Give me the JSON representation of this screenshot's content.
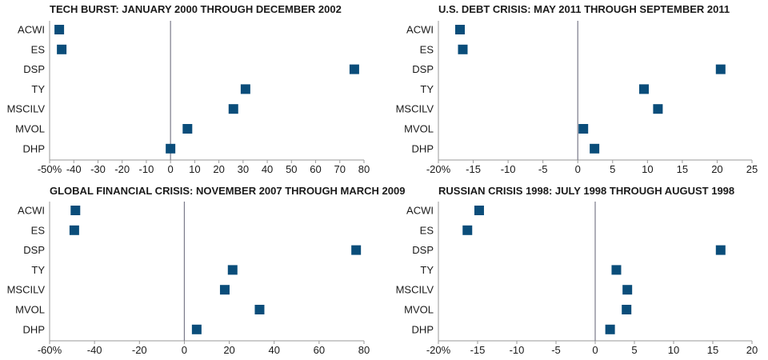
{
  "marker_color": "#0a4d7a",
  "axis_color": "#9a9a9a",
  "zero_line_color": "#7a7a8a",
  "chart_data": [
    {
      "type": "scatter",
      "title": "TECH BURST: JANUARY 2000 THROUGH DECEMBER 2002",
      "categories": [
        "ACWI",
        "ES",
        "DSP",
        "TY",
        "MSCILV",
        "MVOL",
        "DHP"
      ],
      "values": [
        -46,
        -45,
        76,
        31,
        26,
        7,
        0
      ],
      "xlim": [
        -50,
        80
      ],
      "xticks": [
        -50,
        -40,
        -30,
        -20,
        -10,
        0,
        10,
        20,
        30,
        40,
        50,
        60,
        70,
        80
      ],
      "xtick_labels": [
        "-50%",
        "-40",
        "-30",
        "-20",
        "-10",
        "0",
        "10",
        "20",
        "30",
        "40",
        "50",
        "60",
        "70",
        "80"
      ]
    },
    {
      "type": "scatter",
      "title": "U.S. DEBT CRISIS: MAY 2011 THROUGH SEPTEMBER 2011",
      "categories": [
        "ACWI",
        "ES",
        "DSP",
        "TY",
        "MSCILV",
        "MVOL",
        "DHP"
      ],
      "values": [
        -16.9,
        -16.5,
        20.5,
        9.5,
        11.5,
        0.8,
        2.4
      ],
      "xlim": [
        -20,
        25
      ],
      "xticks": [
        -20,
        -15,
        -10,
        -5,
        0,
        5,
        10,
        15,
        20,
        25
      ],
      "xtick_labels": [
        "-20%",
        "-15",
        "-10",
        "-5",
        "0",
        "5",
        "10",
        "15",
        "20",
        "25"
      ]
    },
    {
      "type": "scatter",
      "title": "GLOBAL FINANCIAL CRISIS: NOVEMBER 2007 THROUGH MARCH 2009",
      "categories": [
        "ACWI",
        "ES",
        "DSP",
        "TY",
        "MSCILV",
        "MVOL",
        "DHP"
      ],
      "values": [
        -48.5,
        -49,
        76.5,
        21.5,
        18,
        33.5,
        5.5
      ],
      "xlim": [
        -60,
        80
      ],
      "xticks": [
        -60,
        -40,
        -20,
        0,
        20,
        40,
        60,
        80
      ],
      "xtick_labels": [
        "-60%",
        "-40",
        "-20",
        "0",
        "20",
        "40",
        "60",
        "80"
      ]
    },
    {
      "type": "scatter",
      "title": "RUSSIAN CRISIS 1998: JULY 1998 THROUGH AUGUST 1998",
      "categories": [
        "ACWI",
        "ES",
        "DSP",
        "TY",
        "MSCILV",
        "MVOL",
        "DHP"
      ],
      "values": [
        -14.8,
        -16.3,
        16,
        2.7,
        4.1,
        4,
        1.9
      ],
      "xlim": [
        -20,
        20
      ],
      "xticks": [
        -20,
        -15,
        -10,
        -5,
        0,
        5,
        10,
        15,
        20
      ],
      "xtick_labels": [
        "-20%",
        "-15",
        "-10",
        "-5",
        "0",
        "5",
        "10",
        "15",
        "20"
      ]
    }
  ]
}
